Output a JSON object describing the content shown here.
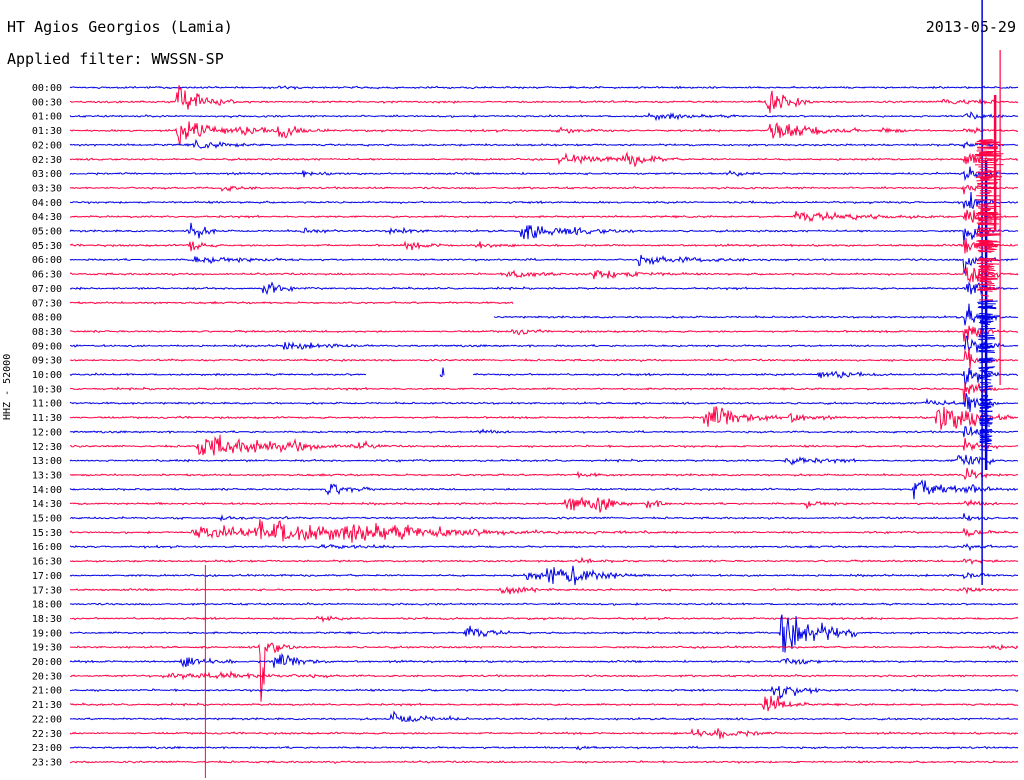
{
  "header": {
    "station": "HT Agios Georgios (Lamia)",
    "filter": "Applied filter: WWSSN-SP",
    "date": "2013-05-29",
    "channel": "HHZ - 52000"
  },
  "colors": {
    "blue": "#0000e6",
    "red": "#ff0044"
  },
  "chart_data": {
    "type": "line",
    "title": "HT Agios Georgios (Lamia)",
    "subtitle": "Applied filter: WWSSN-SP",
    "date": "2013-05-29",
    "ylabel": "HHZ - 52000",
    "rows": [
      "00:00",
      "00:30",
      "01:00",
      "01:30",
      "02:00",
      "02:30",
      "03:00",
      "03:30",
      "04:00",
      "04:30",
      "05:00",
      "05:30",
      "06:00",
      "06:30",
      "07:00",
      "07:30",
      "08:00",
      "08:30",
      "09:00",
      "09:30",
      "10:00",
      "10:30",
      "11:00",
      "11:30",
      "12:00",
      "12:30",
      "13:00",
      "13:30",
      "14:00",
      "14:30",
      "15:00",
      "15:30",
      "16:00",
      "16:30",
      "17:00",
      "17:30",
      "18:00",
      "18:30",
      "19:00",
      "19:30",
      "20:00",
      "20:30",
      "21:00",
      "21:30",
      "22:00",
      "22:30",
      "23:00",
      "23:30"
    ],
    "row_colors": [
      "blue",
      "red"
    ],
    "minutes_per_row": 30,
    "gaps": [
      {
        "row": 15,
        "from": 0.468,
        "to": 1.0
      },
      {
        "row": 16,
        "from": 0.0,
        "to": 0.447
      },
      {
        "row": 20,
        "from": 0.313,
        "to": 0.39
      },
      {
        "row": 20,
        "from": 0.395,
        "to": 0.425
      }
    ],
    "events": [
      {
        "row": 0,
        "x": 0.217,
        "amp": 2,
        "dur": 0.01
      },
      {
        "row": 1,
        "x": 0.113,
        "amp": 28,
        "dur": 0.015
      },
      {
        "row": 1,
        "x": 0.735,
        "amp": 18,
        "dur": 0.012
      },
      {
        "row": 1,
        "x": 0.92,
        "amp": 6,
        "dur": 0.015
      },
      {
        "row": 2,
        "x": 0.61,
        "amp": 4,
        "dur": 0.025
      },
      {
        "row": 3,
        "x": 0.113,
        "amp": 16,
        "dur": 0.03
      },
      {
        "row": 3,
        "x": 0.22,
        "amp": 7,
        "dur": 0.015
      },
      {
        "row": 3,
        "x": 0.515,
        "amp": 3,
        "dur": 0.015
      },
      {
        "row": 3,
        "x": 0.738,
        "amp": 14,
        "dur": 0.025
      },
      {
        "row": 3,
        "x": 0.855,
        "amp": 4,
        "dur": 0.01
      },
      {
        "row": 4,
        "x": 0.13,
        "amp": 5,
        "dur": 0.02
      },
      {
        "row": 5,
        "x": 0.515,
        "amp": 5,
        "dur": 0.03
      },
      {
        "row": 5,
        "x": 0.583,
        "amp": 8,
        "dur": 0.015
      },
      {
        "row": 6,
        "x": 0.245,
        "amp": 3,
        "dur": 0.01
      },
      {
        "row": 6,
        "x": 0.695,
        "amp": 3,
        "dur": 0.01
      },
      {
        "row": 7,
        "x": 0.16,
        "amp": 4,
        "dur": 0.01
      },
      {
        "row": 9,
        "x": 0.765,
        "amp": 6,
        "dur": 0.04
      },
      {
        "row": 10,
        "x": 0.125,
        "amp": 16,
        "dur": 0.008
      },
      {
        "row": 10,
        "x": 0.245,
        "amp": 4,
        "dur": 0.01
      },
      {
        "row": 10,
        "x": 0.338,
        "amp": 5,
        "dur": 0.01
      },
      {
        "row": 10,
        "x": 0.475,
        "amp": 11,
        "dur": 0.03
      },
      {
        "row": 11,
        "x": 0.125,
        "amp": 8,
        "dur": 0.008
      },
      {
        "row": 11,
        "x": 0.355,
        "amp": 5,
        "dur": 0.012
      },
      {
        "row": 11,
        "x": 0.43,
        "amp": 4,
        "dur": 0.01
      },
      {
        "row": 12,
        "x": 0.128,
        "amp": 4,
        "dur": 0.03
      },
      {
        "row": 12,
        "x": 0.6,
        "amp": 5,
        "dur": 0.035
      },
      {
        "row": 13,
        "x": 0.46,
        "amp": 8,
        "dur": 0.015
      },
      {
        "row": 13,
        "x": 0.55,
        "amp": 7,
        "dur": 0.025
      },
      {
        "row": 14,
        "x": 0.203,
        "amp": 9,
        "dur": 0.01
      },
      {
        "row": 17,
        "x": 0.468,
        "amp": 6,
        "dur": 0.008
      },
      {
        "row": 18,
        "x": 0.225,
        "amp": 6,
        "dur": 0.02
      },
      {
        "row": 20,
        "x": 0.393,
        "amp": 10,
        "dur": 0.004
      },
      {
        "row": 20,
        "x": 0.79,
        "amp": 7,
        "dur": 0.015
      },
      {
        "row": 22,
        "x": 0.9,
        "amp": 4,
        "dur": 0.02
      },
      {
        "row": 23,
        "x": 0.67,
        "amp": 20,
        "dur": 0.02
      },
      {
        "row": 23,
        "x": 0.76,
        "amp": 7,
        "dur": 0.012
      },
      {
        "row": 23,
        "x": 0.915,
        "amp": 20,
        "dur": 0.02
      },
      {
        "row": 24,
        "x": 0.43,
        "amp": 3,
        "dur": 0.01
      },
      {
        "row": 25,
        "x": 0.135,
        "amp": 14,
        "dur": 0.045
      },
      {
        "row": 25,
        "x": 0.233,
        "amp": 5,
        "dur": 0.01
      },
      {
        "row": 25,
        "x": 0.3,
        "amp": 5,
        "dur": 0.01
      },
      {
        "row": 26,
        "x": 0.755,
        "amp": 5,
        "dur": 0.02
      },
      {
        "row": 26,
        "x": 0.935,
        "amp": 8,
        "dur": 0.01
      },
      {
        "row": 27,
        "x": 0.535,
        "amp": 3,
        "dur": 0.01
      },
      {
        "row": 28,
        "x": 0.272,
        "amp": 9,
        "dur": 0.012
      },
      {
        "row": 28,
        "x": 0.89,
        "amp": 14,
        "dur": 0.02
      },
      {
        "row": 29,
        "x": 0.523,
        "amp": 12,
        "dur": 0.015
      },
      {
        "row": 29,
        "x": 0.553,
        "amp": 9,
        "dur": 0.01
      },
      {
        "row": 29,
        "x": 0.607,
        "amp": 6,
        "dur": 0.01
      },
      {
        "row": 29,
        "x": 0.777,
        "amp": 4,
        "dur": 0.01
      },
      {
        "row": 30,
        "x": 0.157,
        "amp": 3,
        "dur": 0.02
      },
      {
        "row": 31,
        "x": 0.13,
        "amp": 7,
        "dur": 0.12
      },
      {
        "row": 31,
        "x": 0.2,
        "amp": 12,
        "dur": 0.06
      },
      {
        "row": 31,
        "x": 0.298,
        "amp": 6,
        "dur": 0.04
      },
      {
        "row": 32,
        "x": 0.26,
        "amp": 3,
        "dur": 0.02
      },
      {
        "row": 33,
        "x": 0.535,
        "amp": 3,
        "dur": 0.01
      },
      {
        "row": 34,
        "x": 0.48,
        "amp": 5,
        "dur": 0.02
      },
      {
        "row": 34,
        "x": 0.505,
        "amp": 10,
        "dur": 0.02
      },
      {
        "row": 34,
        "x": 0.528,
        "amp": 7,
        "dur": 0.02
      },
      {
        "row": 35,
        "x": 0.455,
        "amp": 7,
        "dur": 0.015
      },
      {
        "row": 37,
        "x": 0.26,
        "amp": 3,
        "dur": 0.01
      },
      {
        "row": 38,
        "x": 0.417,
        "amp": 10,
        "dur": 0.012
      },
      {
        "row": 38,
        "x": 0.75,
        "amp": 38,
        "dur": 0.02
      },
      {
        "row": 39,
        "x": 0.201,
        "amp": 70,
        "dur": 0.003
      },
      {
        "row": 39,
        "x": 0.203,
        "amp": 14,
        "dur": 0.01
      },
      {
        "row": 39,
        "x": 0.97,
        "amp": 3,
        "dur": 0.015
      },
      {
        "row": 40,
        "x": 0.118,
        "amp": 7,
        "dur": 0.015
      },
      {
        "row": 40,
        "x": 0.215,
        "amp": 12,
        "dur": 0.015
      },
      {
        "row": 40,
        "x": 0.752,
        "amp": 10,
        "dur": 0.01
      },
      {
        "row": 41,
        "x": 0.1,
        "amp": 3,
        "dur": 0.05
      },
      {
        "row": 41,
        "x": 0.155,
        "amp": 3,
        "dur": 0.03
      },
      {
        "row": 42,
        "x": 0.742,
        "amp": 16,
        "dur": 0.012
      },
      {
        "row": 43,
        "x": 0.732,
        "amp": 14,
        "dur": 0.012
      },
      {
        "row": 44,
        "x": 0.34,
        "amp": 8,
        "dur": 0.02
      },
      {
        "row": 45,
        "x": 0.655,
        "amp": 5,
        "dur": 0.02
      },
      {
        "row": 45,
        "x": 0.685,
        "amp": 4,
        "dur": 0.015
      },
      {
        "row": 46,
        "x": 0.535,
        "amp": 3,
        "dur": 0.006
      }
    ],
    "big_event": {
      "start_row": 0,
      "x": 0.94,
      "note": "large earthquake spanning many rows near the right edge"
    }
  }
}
